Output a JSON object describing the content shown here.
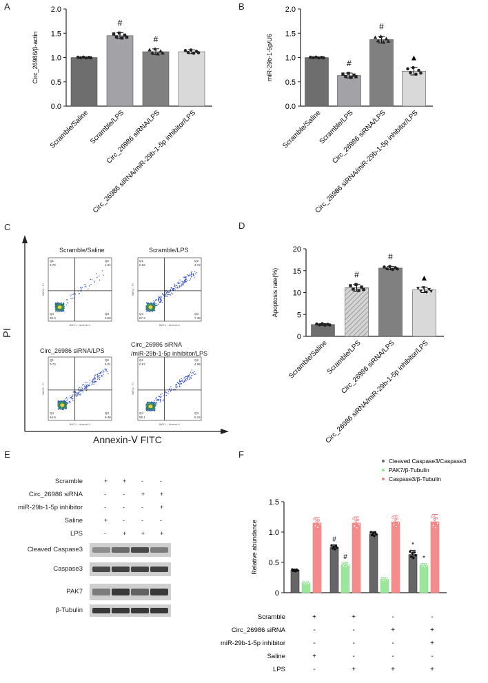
{
  "panels": {
    "a": "A",
    "b": "B",
    "c": "C",
    "d": "D",
    "e": "E",
    "f": "F"
  },
  "chart_data": [
    {
      "id": "A",
      "type": "bar",
      "ylabel": "Circ_26986/β-actin",
      "ylim": [
        0,
        2.0
      ],
      "yticks": [
        "0.0",
        "0.5",
        "1.0",
        "1.5",
        "2.0"
      ],
      "categories": [
        "Scramble/Saline",
        "Scramble/LPS",
        "Circ_26986 siRNA/LPS",
        "Circ_26986 siRNA/miR-29b-1-5p inhibitor/LPS"
      ],
      "values": [
        1.0,
        1.45,
        1.12,
        1.12
      ],
      "errors": [
        0.01,
        0.06,
        0.06,
        0.04
      ],
      "annotations": [
        "",
        "#",
        "#",
        ""
      ],
      "colors": [
        "#6e6e6e",
        "#a3a3a7",
        "#808080",
        "#d9d9d9"
      ]
    },
    {
      "id": "B",
      "type": "bar",
      "ylabel": "miR-29b-1-5p/U6",
      "ylim": [
        0,
        2.0
      ],
      "yticks": [
        "0.0",
        "0.5",
        "1.0",
        "1.5",
        "2.0"
      ],
      "categories": [
        "Scramble/Saline",
        "Scramble/LPS",
        "Circ_26986 siRNA/LPS",
        "Circ_26986 siRNA/miR-29b-1-5p inhibitor/LPS"
      ],
      "values": [
        1.0,
        0.63,
        1.37,
        0.72
      ],
      "errors": [
        0.01,
        0.05,
        0.07,
        0.08
      ],
      "annotations": [
        "",
        "#",
        "#",
        "▲"
      ],
      "colors": [
        "#6e6e6e",
        "#a3a3a7",
        "#808080",
        "#d9d9d9"
      ]
    },
    {
      "id": "D",
      "type": "bar",
      "ylabel": "Apoptosis rate(%)",
      "ylim": [
        0,
        20
      ],
      "yticks": [
        "0",
        "5",
        "10",
        "15",
        "20"
      ],
      "categories": [
        "Scramble/Saline",
        "Scramble/LPS",
        "Circ_26986 siRNA/LPS",
        "Circ_26986 siRNA/miR-29b-1-5p inhibitor/LPS"
      ],
      "values": [
        2.7,
        11.1,
        15.6,
        10.6
      ],
      "errors": [
        0.2,
        0.8,
        0.4,
        0.6
      ],
      "annotations": [
        "",
        "#",
        "#",
        "▲"
      ],
      "colors": [
        "#6e6e6e",
        "#c4c4c4",
        "#808080",
        "#d9d9d9"
      ]
    },
    {
      "id": "F",
      "type": "bar",
      "ylabel": "Relative abundance",
      "ylim": [
        0,
        1.5
      ],
      "yticks": [
        "0",
        "0.5",
        "1.0",
        "1.5"
      ],
      "series": [
        {
          "name": "Cleaved Caspase3/Caspase3",
          "color": "#666666",
          "values": [
            0.37,
            0.75,
            0.97,
            0.63
          ],
          "errors": [
            0.02,
            0.04,
            0.04,
            0.07
          ],
          "annotations": [
            "",
            "#",
            "",
            "*"
          ]
        },
        {
          "name": "PAK7/β-Tubulin",
          "color": "#8fe38f",
          "values": [
            0.16,
            0.46,
            0.22,
            0.45
          ],
          "errors": [
            0.02,
            0.04,
            0.03,
            0.03
          ],
          "annotations": [
            "",
            "#",
            "",
            "*"
          ]
        },
        {
          "name": "Caspase3/β-Tubulin",
          "color": "#f47f7f",
          "values": [
            1.15,
            1.15,
            1.17,
            1.17
          ],
          "errors": [
            0.09,
            0.1,
            0.1,
            0.12
          ],
          "annotations": [
            "",
            "",
            "",
            ""
          ]
        }
      ],
      "conditions": {
        "labels": [
          "Scramble",
          "Circ_26986 siRNA",
          "miR-29b-1-5p inhibitor",
          "Saline",
          "LPS"
        ],
        "rows": [
          [
            "+",
            "+",
            "-",
            "-"
          ],
          [
            "-",
            "-",
            "+",
            "+"
          ],
          [
            "-",
            "-",
            "-",
            "+"
          ],
          [
            "+",
            "-",
            "-",
            "-"
          ],
          [
            "-",
            "+",
            "+",
            "+"
          ]
        ]
      }
    }
  ],
  "flow": {
    "ylabel": "PI",
    "xlabel": "Annexin-Ⅴ FITC",
    "plots": [
      {
        "title": "Scramble/Saline",
        "q1": "0.79",
        "q2": "1.04",
        "q3": "0.58",
        "q4": "96.3"
      },
      {
        "title": "Scramble/LPS",
        "q1": "0.52",
        "q2": "4.72",
        "q3": "7.46",
        "q4": "87.3"
      },
      {
        "title": "Circ_26986 siRNA/LPS",
        "q1": "0.73",
        "q2": "5.01",
        "q3": "9.48",
        "q4": "84.8"
      },
      {
        "title": "Circ_26986 siRNA\n/miR-29b-1-5p inhibitor/LPS",
        "q1": "0.67",
        "q2": "4.95",
        "q3": "5.34",
        "q4": "89.1"
      }
    ],
    "axis_small_x": "BsFL1 :: Annexin-V",
    "axis_small_y": "BsFL3 :: PI"
  },
  "western": {
    "conditions": {
      "labels": [
        "Scramble",
        "Circ_26986 siRNA",
        "miR-29b-1-5p inhibitor",
        "Saline",
        "LPS"
      ],
      "rows": [
        [
          "+",
          "+",
          "-",
          "-"
        ],
        [
          "-",
          "-",
          "+",
          "+"
        ],
        [
          "-",
          "-",
          "-",
          "+"
        ],
        [
          "+",
          "-",
          "-",
          "-"
        ],
        [
          "-",
          "+",
          "+",
          "+"
        ]
      ]
    },
    "bands": [
      "Cleaved Caspase3",
      "Caspase3",
      "PAK7",
      "β-Tubulin"
    ]
  }
}
